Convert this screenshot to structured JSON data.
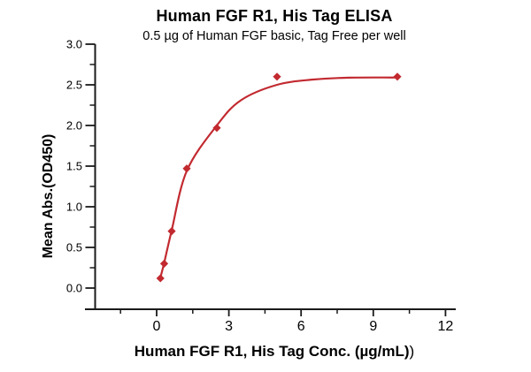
{
  "chart_data": {
    "type": "line",
    "title": "Human FGF R1, His Tag ELISA",
    "subtitle": "0.5 µg of Human FGF basic, Tag Free per well",
    "ylabel": "Mean Abs.(OD450)",
    "xlabel": "Human FGF R1, His Tag Conc. (µg/mL)",
    "xlabel_suffix": ")",
    "x_tick_labels": [
      "0",
      "3",
      "6",
      "9",
      "12"
    ],
    "y_tick_labels": [
      "0.0",
      "0.5",
      "1.0",
      "1.5",
      "2.0",
      "2.5",
      "3.0"
    ],
    "x_minor_ticks": [
      -1.5,
      1.5,
      4.5,
      7.5,
      10.5
    ],
    "y_minor_ticks": [
      0.25,
      0.75,
      1.25,
      1.75,
      2.25,
      2.75
    ],
    "xlim": [
      -3,
      12.4
    ],
    "ylim": [
      -0.26,
      3.0
    ],
    "grid": false,
    "legend": null,
    "marker": "diamond",
    "line_color": "#c22a30",
    "axis_color": "#1a1a1a",
    "points": [
      {
        "x": 0.156,
        "y": 0.12
      },
      {
        "x": 0.313,
        "y": 0.3
      },
      {
        "x": 0.625,
        "y": 0.7
      },
      {
        "x": 1.25,
        "y": 1.47
      },
      {
        "x": 2.5,
        "y": 1.97
      },
      {
        "x": 5,
        "y": 2.6
      },
      {
        "x": 10,
        "y": 2.6
      }
    ],
    "fit_curve": [
      {
        "x": 0.156,
        "y": 0.13
      },
      {
        "x": 0.313,
        "y": 0.31
      },
      {
        "x": 0.625,
        "y": 0.71
      },
      {
        "x": 1.25,
        "y": 1.44
      },
      {
        "x": 2.5,
        "y": 2.0
      },
      {
        "x": 3.5,
        "y": 2.31
      },
      {
        "x": 5,
        "y": 2.5
      },
      {
        "x": 6.5,
        "y": 2.565
      },
      {
        "x": 8,
        "y": 2.588
      },
      {
        "x": 10,
        "y": 2.59
      }
    ]
  }
}
